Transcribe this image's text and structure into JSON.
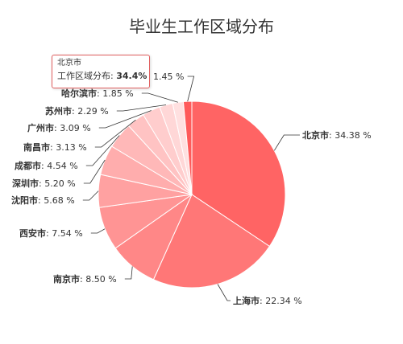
{
  "chart_data": {
    "type": "pie",
    "title": "毕业生工作区域分布",
    "series_name": "工作区域分布",
    "unit": "%",
    "slices": [
      {
        "name": "北京市",
        "value": 34.38,
        "label": "34.38 %",
        "color": "#ff6464"
      },
      {
        "name": "上海市",
        "value": 22.34,
        "label": "22.34 %",
        "color": "#ff7777"
      },
      {
        "name": "南京市",
        "value": 8.5,
        "label": "8.50 %",
        "color": "#ff8787"
      },
      {
        "name": "西安市",
        "value": 7.54,
        "label": "7.54 %",
        "color": "#ff9494"
      },
      {
        "name": "沈阳市",
        "value": 5.68,
        "label": "5.68 %",
        "color": "#ffa1a1"
      },
      {
        "name": "深圳市",
        "value": 5.2,
        "label": "5.20 %",
        "color": "#ffadad"
      },
      {
        "name": "成都市",
        "value": 4.54,
        "label": "4.54 %",
        "color": "#ffb8b8"
      },
      {
        "name": "南昌市",
        "value": 3.13,
        "label": "3.13 %",
        "color": "#ffc3c3"
      },
      {
        "name": "广州市",
        "value": 3.09,
        "label": "3.09 %",
        "color": "#ffcdcd"
      },
      {
        "name": "苏州市",
        "value": 2.29,
        "label": "2.29 %",
        "color": "#ffd7d7"
      },
      {
        "name": "哈尔滨市",
        "value": 1.85,
        "label": "1.85 %",
        "color": "#ffe0e0"
      },
      {
        "name": "",
        "value": 1.45,
        "label": "1.45 %",
        "color": "#ff5a5a"
      }
    ]
  },
  "tooltip": {
    "title": "北京市",
    "series_label": "工作区域分布:",
    "value": "34.4%"
  }
}
